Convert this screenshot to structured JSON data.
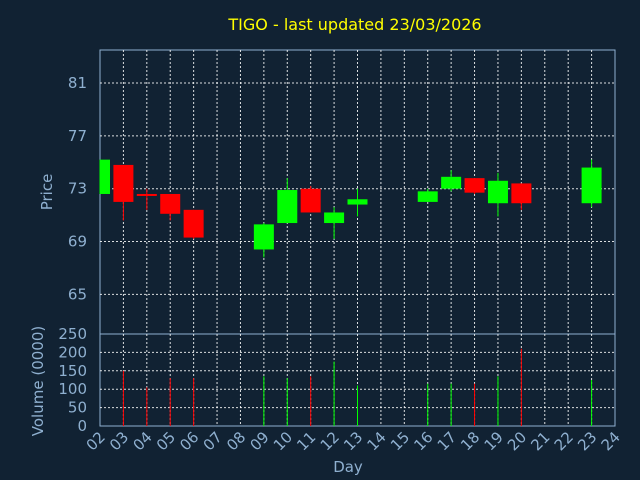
{
  "chart_data": {
    "type": "candlestick",
    "title": "TIGO - last updated 23/03/2026",
    "price_panel": {
      "ylabel": "Price",
      "ylim": [
        62,
        83.5
      ],
      "yticks": [
        65,
        69,
        73,
        77,
        81
      ]
    },
    "volume_panel": {
      "ylabel": "Volume (0000)",
      "ylim": [
        0,
        250
      ],
      "yticks": [
        0,
        50,
        100,
        150,
        200,
        250
      ]
    },
    "xlabel": "Day",
    "x_ticks": [
      "02",
      "03",
      "04",
      "05",
      "06",
      "07",
      "08",
      "09",
      "10",
      "11",
      "12",
      "13",
      "14",
      "15",
      "16",
      "17",
      "18",
      "19",
      "20",
      "21",
      "22",
      "23",
      "24"
    ],
    "grid": true,
    "colors": {
      "up": "#00ff00",
      "down": "#ff0000"
    },
    "candles": [
      {
        "day": 2,
        "open": 72.6,
        "high": 75.2,
        "low": 72.6,
        "close": 75.2,
        "volume": 0
      },
      {
        "day": 3,
        "open": 74.8,
        "high": 74.8,
        "low": 70.6,
        "close": 72.0,
        "volume": 150
      },
      {
        "day": 4,
        "open": 72.6,
        "high": 73.0,
        "low": 71.4,
        "close": 72.5,
        "volume": 105
      },
      {
        "day": 5,
        "open": 72.6,
        "high": 72.6,
        "low": 70.6,
        "close": 71.1,
        "volume": 130
      },
      {
        "day": 6,
        "open": 71.4,
        "high": 71.4,
        "low": 69.2,
        "close": 69.3,
        "volume": 130
      },
      {
        "day": 9,
        "open": 68.4,
        "high": 70.4,
        "low": 67.8,
        "close": 70.3,
        "volume": 135
      },
      {
        "day": 10,
        "open": 70.4,
        "high": 73.8,
        "low": 70.4,
        "close": 72.9,
        "volume": 130
      },
      {
        "day": 11,
        "open": 73.0,
        "high": 73.2,
        "low": 71.2,
        "close": 71.2,
        "volume": 135
      },
      {
        "day": 12,
        "open": 70.4,
        "high": 71.6,
        "low": 69.2,
        "close": 71.2,
        "volume": 175
      },
      {
        "day": 13,
        "open": 71.8,
        "high": 73.0,
        "low": 70.9,
        "close": 72.2,
        "volume": 110
      },
      {
        "day": 16,
        "open": 72.0,
        "high": 73.0,
        "low": 72.0,
        "close": 72.8,
        "volume": 115
      },
      {
        "day": 17,
        "open": 73.0,
        "high": 74.4,
        "low": 72.8,
        "close": 73.9,
        "volume": 115
      },
      {
        "day": 18,
        "open": 73.8,
        "high": 73.8,
        "low": 72.6,
        "close": 72.7,
        "volume": 115
      },
      {
        "day": 19,
        "open": 71.9,
        "high": 74.2,
        "low": 70.9,
        "close": 73.6,
        "volume": 135
      },
      {
        "day": 20,
        "open": 73.4,
        "high": 73.4,
        "low": 71.4,
        "close": 71.9,
        "volume": 210
      },
      {
        "day": 23,
        "open": 71.9,
        "high": 75.2,
        "low": 71.6,
        "close": 74.6,
        "volume": 125
      }
    ]
  }
}
